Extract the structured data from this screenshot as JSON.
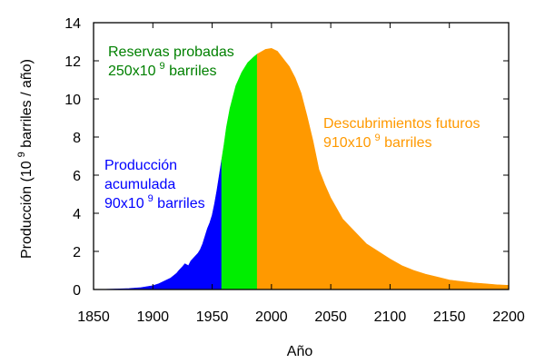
{
  "chart_data": {
    "type": "area",
    "title": "",
    "xlabel": "Año",
    "ylabel_main": "Producción (10",
    "ylabel_exp": "9",
    "ylabel_tail": " barriles / año)",
    "xlim": [
      1850,
      2200
    ],
    "ylim": [
      0,
      14
    ],
    "x_ticks": [
      "1850",
      "1900",
      "1950",
      "2000",
      "2050",
      "2100",
      "2150",
      "2200"
    ],
    "y_ticks": [
      "0",
      "2",
      "4",
      "6",
      "8",
      "10",
      "12",
      "14"
    ],
    "grid": false,
    "series": [
      {
        "colour": "#0000ff",
        "x": [
          1850,
          1860,
          1870,
          1880,
          1890,
          1900,
          1905,
          1910,
          1915,
          1918,
          1920,
          1922,
          1925,
          1927,
          1930,
          1932,
          1935,
          1938,
          1940,
          1942,
          1944,
          1946,
          1948,
          1950,
          1952,
          1954,
          1956,
          1958
        ],
        "y": [
          0,
          0.01,
          0.03,
          0.05,
          0.1,
          0.2,
          0.3,
          0.45,
          0.6,
          0.75,
          0.85,
          1.0,
          1.2,
          1.35,
          1.25,
          1.5,
          1.7,
          1.9,
          2.1,
          2.4,
          2.8,
          3.2,
          3.5,
          3.9,
          4.5,
          5.2,
          6.0,
          6.8
        ],
        "name_lines": [
          "Producción",
          "acumulada",
          "90x10"
        ],
        "name_exp": "9",
        "name_tail": " barriles"
      },
      {
        "colour": "#00ee00",
        "x": [
          1958,
          1960,
          1962,
          1965,
          1970,
          1975,
          1980,
          1985,
          1988
        ],
        "y": [
          6.8,
          7.6,
          8.5,
          9.5,
          10.7,
          11.4,
          11.9,
          12.2,
          12.35
        ],
        "name_lines": [
          "Reservas probadas",
          "250x10"
        ],
        "name_exp": "9",
        "name_tail": " barriles"
      },
      {
        "colour": "#ff9900",
        "x": [
          1988,
          1995,
          2000,
          2005,
          2010,
          2015,
          2020,
          2025,
          2030,
          2035,
          2040,
          2045,
          2050,
          2060,
          2070,
          2080,
          2090,
          2100,
          2110,
          2120,
          2130,
          2140,
          2150,
          2160,
          2170,
          2180,
          2190,
          2200
        ],
        "y": [
          12.35,
          12.6,
          12.65,
          12.5,
          12.1,
          11.7,
          11.1,
          10.3,
          9.1,
          7.8,
          6.3,
          5.5,
          4.8,
          3.7,
          3.05,
          2.4,
          2.0,
          1.6,
          1.25,
          1.0,
          0.8,
          0.65,
          0.5,
          0.42,
          0.35,
          0.3,
          0.25,
          0.22
        ],
        "name_lines": [
          "Descubrimientos futuros",
          "910x10"
        ],
        "name_exp": "9",
        "name_tail": " barriles"
      }
    ]
  }
}
